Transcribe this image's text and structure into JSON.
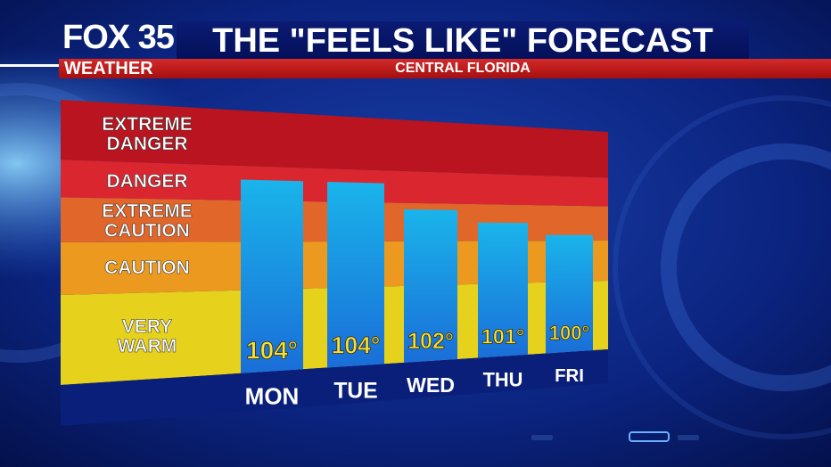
{
  "header": {
    "logo": "FOX 35",
    "weather_label": "WEATHER",
    "title": "THE \"FEELS LIKE\" FORECAST",
    "subtitle": "CENTRAL FLORIDA"
  },
  "colors": {
    "very_warm": "#e6d11c",
    "caution": "#ec9a1f",
    "extreme_caution": "#e0662a",
    "danger": "#d9262f",
    "extreme_danger": "#b9141f",
    "bar": "#1a9be0",
    "base": "#0a1f7a"
  },
  "chart_data": {
    "type": "bar",
    "categories": [
      "MON",
      "TUE",
      "WED",
      "THU",
      "FRI"
    ],
    "values": [
      104,
      104,
      102,
      101,
      100
    ],
    "value_labels": [
      "104°",
      "104°",
      "102°",
      "101°",
      "100°"
    ],
    "zones": [
      {
        "label_lines": [
          "VERY",
          "WARM"
        ],
        "from": 90,
        "to": 96
      },
      {
        "label_lines": [
          "CAUTION"
        ],
        "from": 96,
        "to": 99.5
      },
      {
        "label_lines": [
          "EXTREME",
          "CAUTION"
        ],
        "from": 99.5,
        "to": 102.5
      },
      {
        "label_lines": [
          "DANGER"
        ],
        "from": 102.5,
        "to": 105
      },
      {
        "label_lines": [
          "EXTREME",
          "DANGER"
        ],
        "from": 105,
        "to": 109
      }
    ],
    "ylim": [
      90,
      109
    ],
    "title": "THE \"FEELS LIKE\" FORECAST",
    "xlabel": "",
    "ylabel": ""
  }
}
